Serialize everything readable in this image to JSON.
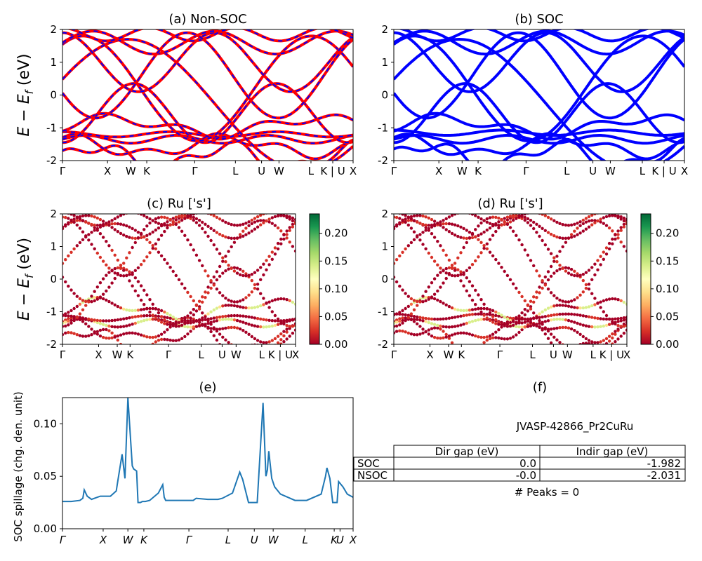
{
  "kpath_labels": [
    "Γ",
    "X",
    "W",
    "K",
    "Γ",
    "L",
    "U",
    "W",
    "L",
    "K | U",
    "X"
  ],
  "kpath_labels_e": [
    "Γ",
    "X",
    "W",
    "K",
    "Γ",
    "L",
    "U",
    "W",
    "L",
    "K",
    "U",
    "X"
  ],
  "energy_axis": {
    "label_main": "E − E",
    "label_sub": "f",
    "label_unit": " (eV)",
    "ticks": [
      "-2",
      "-1",
      "0",
      "1",
      "2"
    ],
    "ylim": [
      -2,
      2
    ]
  },
  "colorbar_ticks": [
    "0.00",
    "0.05",
    "0.10",
    "0.15",
    "0.20"
  ],
  "spillage_ylabel": "SOC spillage (chg. den. unit)",
  "spillage_yticks": [
    "0.00",
    "0.05",
    "0.10"
  ],
  "table": {
    "title": "JVASP-42866_Pr2CuRu",
    "columns": [
      "",
      "Dir gap (eV)",
      "Indir gap (eV)"
    ],
    "rows": [
      {
        "label": "SOC",
        "dir": "0.0",
        "indir": "-1.982"
      },
      {
        "label": "NSOC",
        "dir": "-0.0",
        "indir": "-2.031"
      }
    ],
    "peaks_text": "# Peaks = 0"
  },
  "chart_data": [
    {
      "panel": "a",
      "type": "line",
      "title": "(a) Non-SOC",
      "ylabel": "E − E_f (eV)",
      "ylim": [
        -2,
        2
      ],
      "series": [
        {
          "name": "",
          "color": "#ff0000",
          "style": "solid"
        },
        {
          "name": "",
          "color": "#0000ff",
          "style": "dashed"
        }
      ],
      "legend": "none"
    },
    {
      "panel": "b",
      "type": "line",
      "title": "(b) SOC",
      "ylim": [
        -2,
        2
      ],
      "series": [
        {
          "name": "",
          "color": "#0000ff",
          "style": "solid"
        }
      ],
      "legend": "none"
    },
    {
      "panel": "c",
      "type": "scatter",
      "title": "(c)  Ru ['s']",
      "ylim": [
        -2,
        2
      ],
      "colormap": "RdYlGn",
      "clim": [
        0,
        0.23
      ]
    },
    {
      "panel": "d",
      "type": "scatter",
      "title": "(d) Ru ['s']",
      "ylim": [
        -2,
        2
      ],
      "colormap": "RdYlGn",
      "clim": [
        0,
        0.23
      ]
    },
    {
      "panel": "e",
      "type": "line",
      "title": "(e)",
      "ylabel": "SOC spillage (chg. den. unit)",
      "ylim": [
        0,
        0.125
      ],
      "color": "#1f77b4",
      "x": [
        0,
        0.03,
        0.06,
        0.07,
        0.075,
        0.085,
        0.1,
        0.13,
        0.14,
        0.165,
        0.185,
        0.19,
        0.205,
        0.215,
        0.225,
        0.24,
        0.245,
        0.255,
        0.26,
        0.268,
        0.275,
        0.285,
        0.3,
        0.33,
        0.345,
        0.35,
        0.355,
        0.37,
        0.37,
        0.4,
        0.42,
        0.45,
        0.46,
        0.5,
        0.515,
        0.52,
        0.53,
        0.535,
        0.55,
        0.585,
        0.61,
        0.62,
        0.64,
        0.67,
        0.69,
        0.7,
        0.705,
        0.71,
        0.72,
        0.73,
        0.75,
        0.8,
        0.84,
        0.89,
        0.905,
        0.91,
        0.92,
        0.93,
        0.945,
        0.95,
        0.965,
        0.98,
        1.0
      ],
      "y": [
        0.026,
        0.026,
        0.027,
        0.029,
        0.037,
        0.031,
        0.028,
        0.031,
        0.031,
        0.031,
        0.036,
        0.045,
        0.071,
        0.048,
        0.125,
        0.06,
        0.057,
        0.055,
        0.025,
        0.025,
        0.026,
        0.026,
        0.027,
        0.034,
        0.042,
        0.03,
        0.027,
        0.027,
        0.027,
        0.027,
        0.027,
        0.027,
        0.029,
        0.028,
        0.028,
        0.028,
        0.028,
        0.028,
        0.029,
        0.034,
        0.054,
        0.047,
        0.025,
        0.025,
        0.12,
        0.05,
        0.056,
        0.074,
        0.048,
        0.04,
        0.033,
        0.027,
        0.027,
        0.033,
        0.05,
        0.058,
        0.048,
        0.025,
        0.025,
        0.045,
        0.04,
        0.033,
        0.03
      ]
    }
  ]
}
